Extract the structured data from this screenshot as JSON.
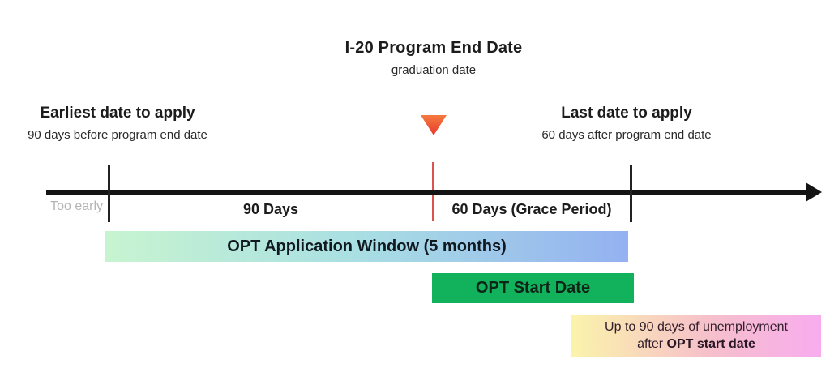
{
  "header": {
    "title": "I-20 Program End Date",
    "subtitle": "graduation date"
  },
  "annotations": {
    "earliest": {
      "title": "Earliest date to apply",
      "subtitle": "90 days before program end date"
    },
    "latest": {
      "title": "Last date to apply",
      "subtitle": "60 days after program end date"
    }
  },
  "timeline": {
    "too_early_label": "Too early",
    "segment_90_label": "90 Days",
    "segment_60_label": "60 Days (Grace Period)",
    "axis_color": "#141414",
    "tick_color": "#222222",
    "end_date_line_color": "#d9534f"
  },
  "marker": {
    "icon": "down-triangle",
    "color_top": "#f47a3f",
    "color_bottom": "#e93a2e"
  },
  "bars": {
    "application_window": {
      "label": "OPT Application Window (5 months)",
      "gradient_start": "#c7f4d0",
      "gradient_mid": "#a9dfe3",
      "gradient_end": "#94b1f1"
    },
    "start_date": {
      "label": "OPT Start Date",
      "color": "#12b15c"
    },
    "unemployment": {
      "line1": "Up to 90 days of unemployment",
      "line2_prefix": "after ",
      "line2_bold": "OPT start date",
      "gradient_start": "#fbf3ab",
      "gradient_mid": "#f6c0cb",
      "gradient_end": "#f8acee"
    }
  }
}
